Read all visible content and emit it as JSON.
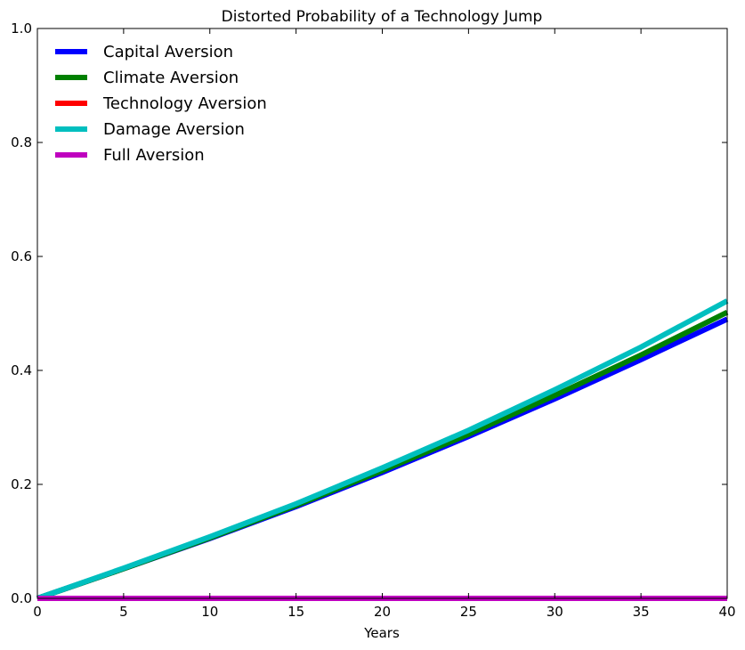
{
  "chart_data": {
    "type": "line",
    "title": "Distorted Probability of a Technology Jump",
    "xlabel": "Years",
    "ylabel": "",
    "xlim": [
      0,
      40
    ],
    "ylim": [
      0,
      1.0
    ],
    "xticks": [
      0,
      5,
      10,
      15,
      20,
      25,
      30,
      35,
      40
    ],
    "yticks": [
      0.0,
      0.2,
      0.4,
      0.6,
      0.8,
      1.0
    ],
    "xtick_labels": [
      "0",
      "5",
      "10",
      "15",
      "20",
      "25",
      "30",
      "35",
      "40"
    ],
    "ytick_labels": [
      "0.0",
      "0.2",
      "0.4",
      "0.6",
      "0.8",
      "1.0"
    ],
    "grid": false,
    "legend_position": "top-left",
    "x": [
      0,
      5,
      10,
      15,
      20,
      25,
      30,
      35,
      40
    ],
    "series": [
      {
        "name": "Capital Aversion",
        "color": "#0000ff",
        "values": [
          0.0,
          0.052,
          0.105,
          0.161,
          0.221,
          0.284,
          0.35,
          0.419,
          0.49
        ]
      },
      {
        "name": "Climate Aversion",
        "color": "#008000",
        "values": [
          0.0,
          0.052,
          0.106,
          0.163,
          0.224,
          0.288,
          0.356,
          0.427,
          0.502
        ]
      },
      {
        "name": "Technology Aversion",
        "color": "#ff0000",
        "values": [
          0.0,
          0.0,
          0.0,
          0.0,
          0.0,
          0.0,
          0.0,
          0.0,
          0.0
        ]
      },
      {
        "name": "Damage Aversion",
        "color": "#00bfbf",
        "values": [
          0.0,
          0.053,
          0.108,
          0.166,
          0.229,
          0.295,
          0.366,
          0.441,
          0.522
        ]
      },
      {
        "name": "Full Aversion",
        "color": "#bf00bf",
        "values": [
          0.0,
          0.0,
          0.0,
          0.0,
          0.0,
          0.0,
          0.0,
          0.0,
          0.0
        ]
      }
    ]
  }
}
